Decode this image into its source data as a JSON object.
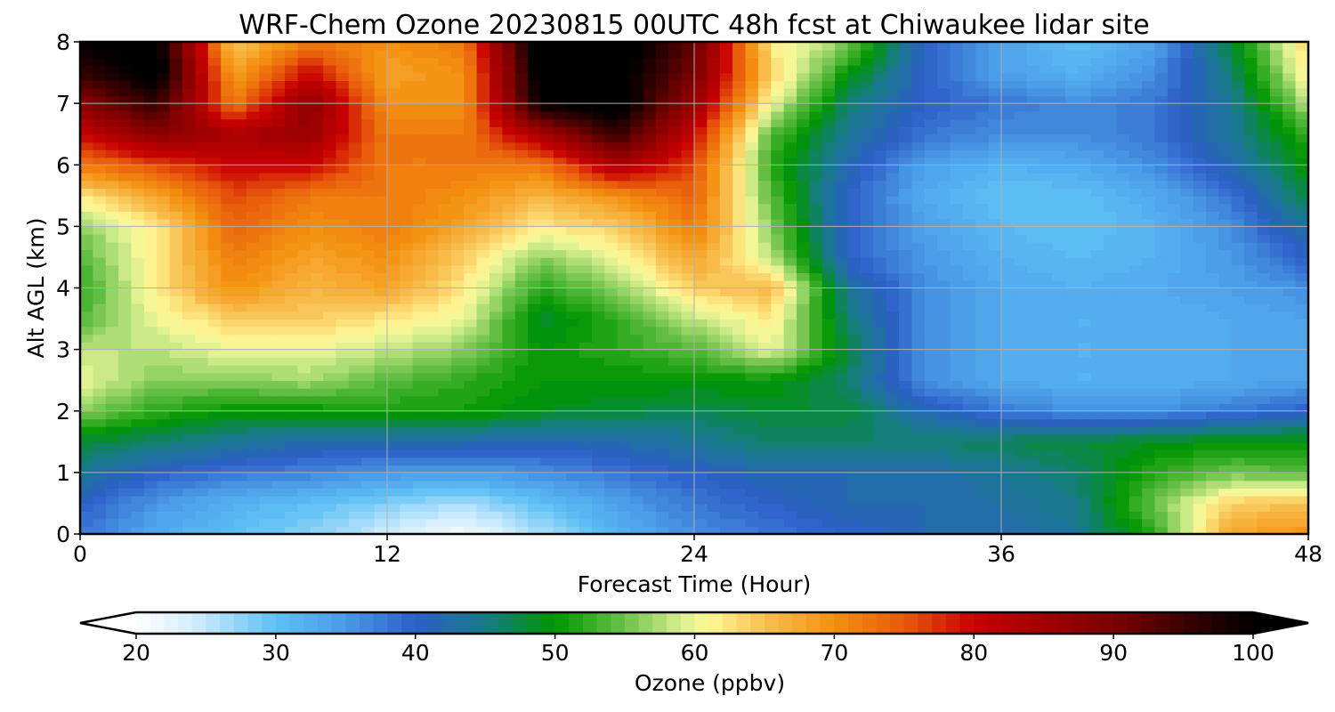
{
  "chart_data": {
    "type": "heatmap",
    "title": "WRF-Chem Ozone  20230815 00UTC 48h fcst at Chiwaukee lidar site",
    "xlabel": "Forecast Time (Hour)",
    "ylabel": "Alt AGL (km)",
    "xlim": [
      0,
      48
    ],
    "ylim": [
      0,
      8
    ],
    "x_ticks": [
      0,
      12,
      24,
      36,
      48
    ],
    "y_ticks": [
      0,
      1,
      2,
      3,
      4,
      5,
      6,
      7,
      8
    ],
    "grid": true,
    "x": [
      0,
      3,
      6,
      9,
      12,
      15,
      18,
      21,
      24,
      27,
      30,
      33,
      36,
      39,
      42,
      45,
      48
    ],
    "y": [
      0,
      0.5,
      1,
      1.5,
      2,
      2.5,
      3,
      3.5,
      4,
      4.5,
      5,
      5.5,
      6,
      6.5,
      7,
      7.5,
      8
    ],
    "z": [
      [
        38,
        33,
        30,
        28,
        24,
        21,
        26,
        32,
        36,
        38,
        40,
        42,
        42,
        44,
        52,
        68,
        70
      ],
      [
        40,
        35,
        32,
        30,
        28,
        26,
        30,
        34,
        38,
        40,
        42,
        42,
        43,
        45,
        55,
        64,
        65
      ],
      [
        44,
        40,
        38,
        37,
        35,
        34,
        36,
        38,
        40,
        42,
        42,
        42,
        44,
        46,
        52,
        55,
        54
      ],
      [
        48,
        46,
        44,
        42,
        42,
        42,
        41,
        42,
        44,
        46,
        46,
        46,
        47,
        48,
        49,
        50,
        50
      ],
      [
        56,
        52,
        50,
        50,
        51,
        51,
        49,
        48,
        47,
        48,
        48,
        42,
        38,
        36,
        36,
        38,
        40
      ],
      [
        60,
        56,
        56,
        57,
        54,
        52,
        50,
        50,
        50,
        50,
        46,
        36,
        33,
        32,
        32,
        33,
        34
      ],
      [
        58,
        58,
        60,
        60,
        58,
        56,
        50,
        52,
        54,
        60,
        48,
        36,
        33,
        32,
        32,
        33,
        34
      ],
      [
        54,
        60,
        64,
        64,
        62,
        60,
        48,
        52,
        58,
        62,
        46,
        36,
        33,
        32,
        32,
        33,
        34
      ],
      [
        52,
        62,
        70,
        66,
        68,
        62,
        52,
        56,
        64,
        66,
        44,
        36,
        33,
        32,
        33,
        34,
        36
      ],
      [
        54,
        62,
        72,
        68,
        70,
        64,
        56,
        60,
        68,
        58,
        40,
        35,
        32,
        31,
        32,
        35,
        40
      ],
      [
        56,
        62,
        74,
        70,
        72,
        68,
        62,
        64,
        72,
        56,
        40,
        34,
        31,
        30,
        32,
        36,
        44
      ],
      [
        62,
        68,
        76,
        72,
        72,
        70,
        66,
        70,
        74,
        54,
        40,
        33,
        30,
        30,
        33,
        38,
        48
      ],
      [
        72,
        76,
        80,
        80,
        72,
        72,
        72,
        84,
        76,
        52,
        42,
        34,
        32,
        33,
        36,
        42,
        50
      ],
      [
        80,
        88,
        84,
        86,
        72,
        72,
        84,
        96,
        80,
        54,
        44,
        38,
        36,
        36,
        38,
        44,
        52
      ],
      [
        88,
        96,
        72,
        88,
        70,
        70,
        100,
        102,
        86,
        60,
        46,
        40,
        38,
        36,
        38,
        44,
        58
      ],
      [
        96,
        102,
        68,
        80,
        68,
        70,
        102,
        102,
        90,
        64,
        50,
        40,
        34,
        32,
        36,
        46,
        62
      ],
      [
        100,
        102,
        64,
        72,
        70,
        72,
        104,
        104,
        92,
        62,
        56,
        40,
        34,
        30,
        34,
        48,
        64
      ]
    ],
    "colorbar": {
      "label": "Ozone  (ppbv)",
      "min": 20,
      "max": 100,
      "ticks": [
        20,
        30,
        40,
        50,
        60,
        70,
        80,
        90,
        100
      ],
      "extend": "both",
      "stops": [
        {
          "v": 20,
          "c": "#ffffff"
        },
        {
          "v": 24,
          "c": "#d6eefe"
        },
        {
          "v": 30,
          "c": "#5ec0f6"
        },
        {
          "v": 35,
          "c": "#4a9ae6"
        },
        {
          "v": 40,
          "c": "#2d5fc8"
        },
        {
          "v": 45,
          "c": "#167a88"
        },
        {
          "v": 50,
          "c": "#009600"
        },
        {
          "v": 55,
          "c": "#6cc24a"
        },
        {
          "v": 59,
          "c": "#d8ee90"
        },
        {
          "v": 61,
          "c": "#fff898"
        },
        {
          "v": 65,
          "c": "#f8c050"
        },
        {
          "v": 70,
          "c": "#f49010"
        },
        {
          "v": 75,
          "c": "#e85a0c"
        },
        {
          "v": 80,
          "c": "#c80000"
        },
        {
          "v": 90,
          "c": "#7a0000"
        },
        {
          "v": 100,
          "c": "#000000"
        }
      ]
    }
  }
}
